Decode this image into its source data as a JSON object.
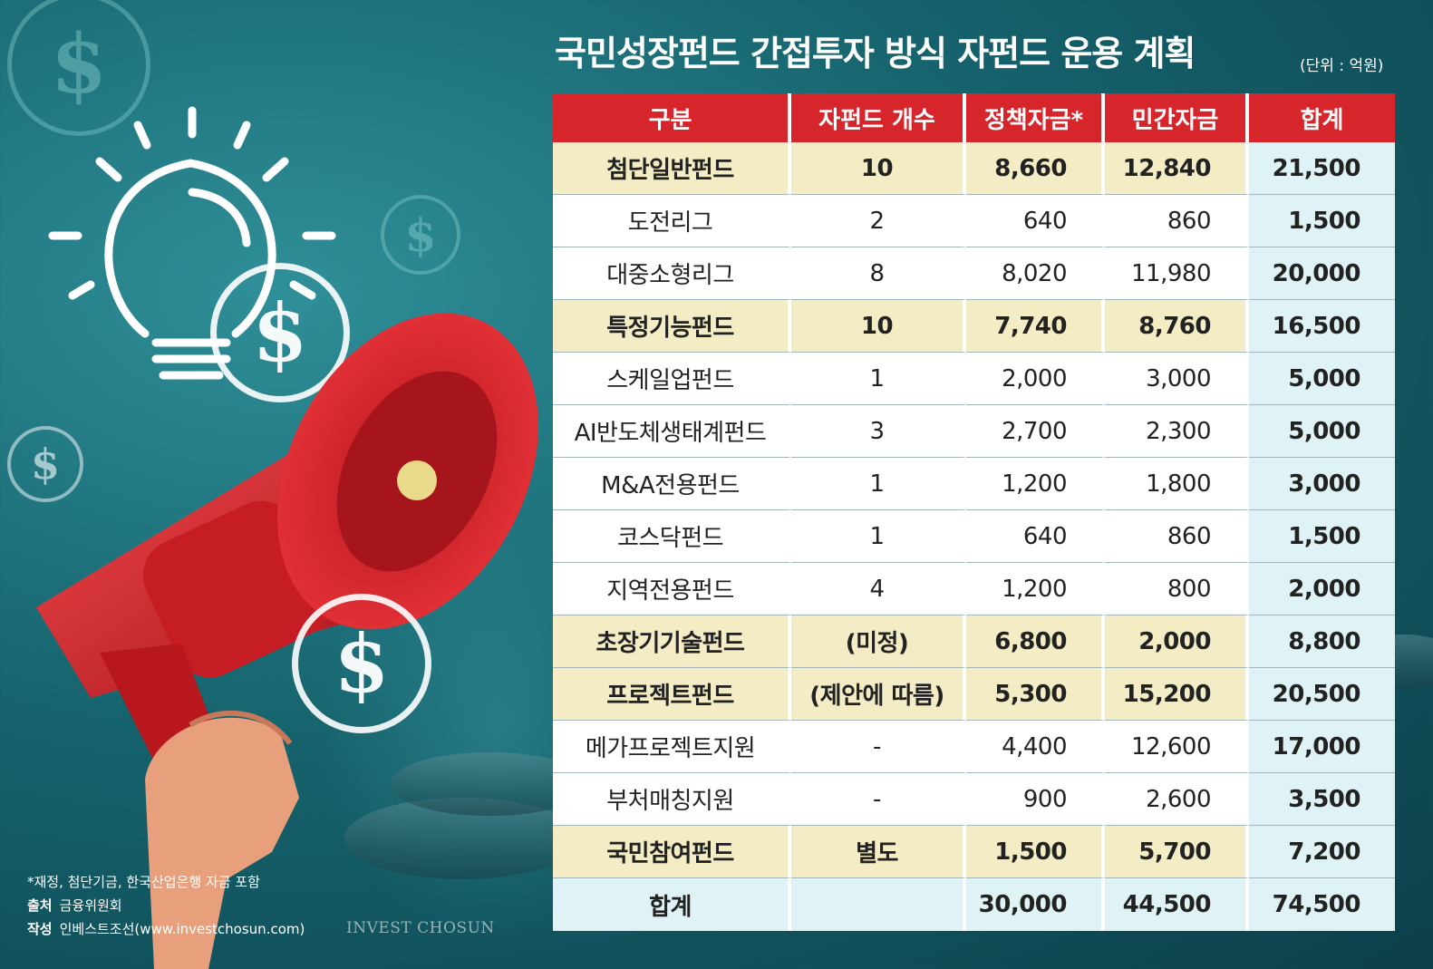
{
  "title": "국민성장펀드 간접투자 방식 자펀드 운용 계획",
  "unit": "(단위 : 억원)",
  "headers": [
    "구분",
    "자펀드 개수",
    "정책자금*",
    "민간자금",
    "합계"
  ],
  "rows": [
    {
      "name": "첨단일반펀드",
      "count": "10",
      "policy": "8,660",
      "private": "12,840",
      "total": "21,500",
      "kind": "major"
    },
    {
      "name": "도전리그",
      "count": "2",
      "policy": "640",
      "private": "860",
      "total": "1,500",
      "kind": "normal"
    },
    {
      "name": "대중소형리그",
      "count": "8",
      "policy": "8,020",
      "private": "11,980",
      "total": "20,000",
      "kind": "normal"
    },
    {
      "name": "특정기능펀드",
      "count": "10",
      "policy": "7,740",
      "private": "8,760",
      "total": "16,500",
      "kind": "major"
    },
    {
      "name": "스케일업펀드",
      "count": "1",
      "policy": "2,000",
      "private": "3,000",
      "total": "5,000",
      "kind": "normal"
    },
    {
      "name": "AI반도체생태계펀드",
      "count": "3",
      "policy": "2,700",
      "private": "2,300",
      "total": "5,000",
      "kind": "normal"
    },
    {
      "name": "M&A전용펀드",
      "count": "1",
      "policy": "1,200",
      "private": "1,800",
      "total": "3,000",
      "kind": "normal"
    },
    {
      "name": "코스닥펀드",
      "count": "1",
      "policy": "640",
      "private": "860",
      "total": "1,500",
      "kind": "normal"
    },
    {
      "name": "지역전용펀드",
      "count": "4",
      "policy": "1,200",
      "private": "800",
      "total": "2,000",
      "kind": "normal"
    },
    {
      "name": "초장기기술펀드",
      "count": "(미정)",
      "policy": "6,800",
      "private": "2,000",
      "total": "8,800",
      "kind": "major"
    },
    {
      "name": "프로젝트펀드",
      "count": "(제안에 따름)",
      "policy": "5,300",
      "private": "15,200",
      "total": "20,500",
      "kind": "major"
    },
    {
      "name": "메가프로젝트지원",
      "count": "-",
      "policy": "4,400",
      "private": "12,600",
      "total": "17,000",
      "kind": "normal"
    },
    {
      "name": "부처매칭지원",
      "count": "-",
      "policy": "900",
      "private": "2,600",
      "total": "3,500",
      "kind": "normal"
    },
    {
      "name": "국민참여펀드",
      "count": "별도",
      "policy": "1,500",
      "private": "5,700",
      "total": "7,200",
      "kind": "major"
    },
    {
      "name": "합계",
      "count": "",
      "policy": "30,000",
      "private": "44,500",
      "total": "74,500",
      "kind": "total"
    }
  ],
  "footnotes": {
    "note": "*재정, 첨단기금, 한국산업은행 자금 포함",
    "source_label": "출처",
    "source": "금융위원회",
    "author_label": "작성",
    "author": "인베스트조선(www.investchosun.com)"
  },
  "brand": "INVEST CHOSUN",
  "illustration": {
    "icons": [
      "lightbulb-icon",
      "dollar-icon",
      "megaphone-icon",
      "hand-icon",
      "coin-stack-icon"
    ],
    "accent_color": "#d7252c"
  }
}
